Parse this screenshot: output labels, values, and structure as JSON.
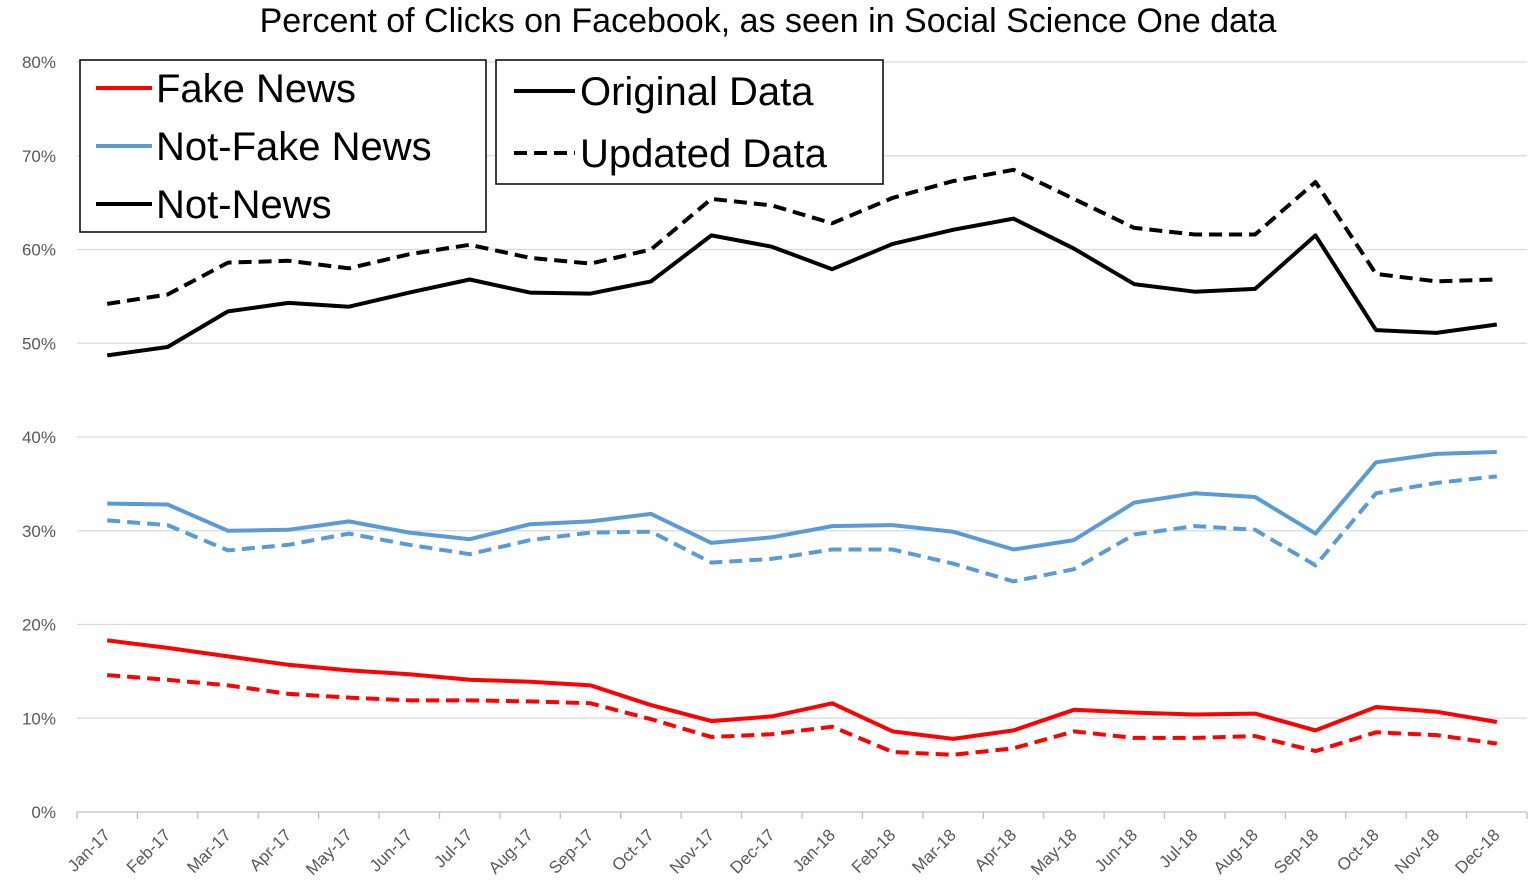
{
  "chart_data": {
    "type": "line",
    "title": "Percent of Clicks on Facebook, as seen in Social Science One data",
    "xlabel": "",
    "ylabel": "",
    "ylim": [
      0,
      80
    ],
    "y_ticks": [
      "0%",
      "10%",
      "20%",
      "30%",
      "40%",
      "50%",
      "60%",
      "70%",
      "80%"
    ],
    "grid": "horizontal",
    "categories": [
      "Jan-17",
      "Feb-17",
      "Mar-17",
      "Apr-17",
      "May-17",
      "Jun-17",
      "Jul-17",
      "Aug-17",
      "Sep-17",
      "Oct-17",
      "Nov-17",
      "Dec-17",
      "Jan-18",
      "Feb-18",
      "Mar-18",
      "Apr-18",
      "May-18",
      "Jun-18",
      "Jul-18",
      "Aug-18",
      "Sep-18",
      "Oct-18",
      "Nov-18",
      "Dec-18"
    ],
    "series": [
      {
        "name": "Fake News",
        "version": "Original Data",
        "color": "#ff0000",
        "dash": "solid",
        "values": [
          18.3,
          17.5,
          16.6,
          15.7,
          15.1,
          14.7,
          14.1,
          13.9,
          13.5,
          11.4,
          9.7,
          10.2,
          11.6,
          8.6,
          7.8,
          8.7,
          10.9,
          10.6,
          10.4,
          10.5,
          8.7,
          11.2,
          10.7,
          9.6
        ]
      },
      {
        "name": "Fake News",
        "version": "Updated Data",
        "color": "#ff0000",
        "dash": "dashed",
        "values": [
          14.6,
          14.1,
          13.5,
          12.6,
          12.2,
          11.9,
          11.9,
          11.8,
          11.6,
          9.9,
          8.0,
          8.3,
          9.1,
          6.4,
          6.1,
          6.8,
          8.6,
          7.9,
          7.9,
          8.1,
          6.5,
          8.5,
          8.2,
          7.3
        ]
      },
      {
        "name": "Not-Fake News",
        "version": "Original Data",
        "color": "#5b9bd5",
        "dash": "solid",
        "values": [
          32.9,
          32.8,
          30.0,
          30.1,
          31.0,
          29.8,
          29.1,
          30.7,
          31.0,
          31.8,
          28.7,
          29.3,
          30.5,
          30.6,
          29.9,
          28.0,
          29.0,
          33.0,
          34.0,
          33.6,
          29.7,
          37.3,
          38.2,
          38.4
        ]
      },
      {
        "name": "Not-Fake News",
        "version": "Updated Data",
        "color": "#5b9bd5",
        "dash": "dashed",
        "values": [
          31.1,
          30.6,
          27.9,
          28.5,
          29.7,
          28.5,
          27.5,
          29.0,
          29.8,
          29.9,
          26.6,
          27.0,
          28.0,
          28.0,
          26.5,
          24.6,
          25.9,
          29.6,
          30.5,
          30.1,
          26.3,
          34.0,
          35.1,
          35.8
        ]
      },
      {
        "name": "Not-News",
        "version": "Original Data",
        "color": "#000000",
        "dash": "solid",
        "values": [
          48.7,
          49.6,
          53.4,
          54.3,
          53.9,
          55.4,
          56.8,
          55.4,
          55.3,
          56.6,
          61.5,
          60.3,
          57.9,
          60.6,
          62.1,
          63.3,
          60.1,
          56.3,
          55.5,
          55.8,
          61.5,
          51.4,
          51.1,
          52.0
        ]
      },
      {
        "name": "Not-News",
        "version": "Updated Data",
        "color": "#000000",
        "dash": "dashed",
        "values": [
          54.2,
          55.2,
          58.6,
          58.8,
          58.0,
          59.5,
          60.5,
          59.1,
          58.5,
          60.0,
          65.4,
          64.7,
          62.8,
          65.5,
          67.3,
          68.5,
          65.4,
          62.3,
          61.6,
          61.6,
          67.2,
          57.4,
          56.6,
          56.8
        ]
      }
    ],
    "legend_categories": [
      {
        "label": "Fake News",
        "color": "#ff0000"
      },
      {
        "label": "Not-Fake News",
        "color": "#5b9bd5"
      },
      {
        "label": "Not-News",
        "color": "#000000"
      }
    ],
    "legend_styles": [
      {
        "label": "Original Data",
        "dash": "solid"
      },
      {
        "label": "Updated Data",
        "dash": "dashed"
      }
    ],
    "legend_position": "top-left"
  }
}
